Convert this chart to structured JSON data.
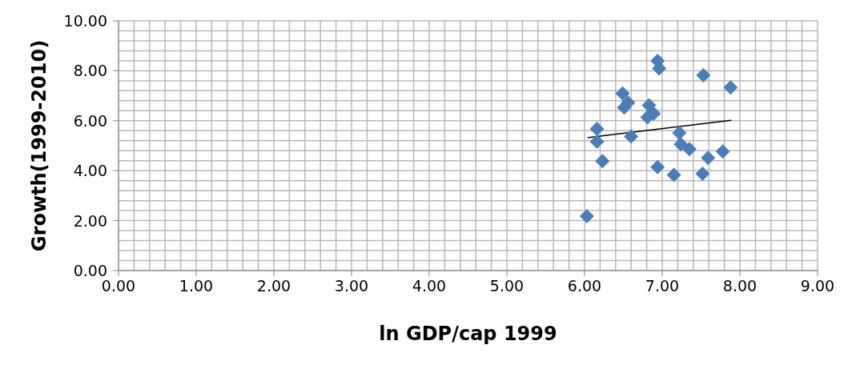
{
  "chart_data": {
    "type": "scatter",
    "xlabel": "ln GDP/cap 1999",
    "ylabel": "Growth(1999-2010)",
    "xlim": [
      0,
      9
    ],
    "ylim": [
      0,
      10
    ],
    "grid": true,
    "xticks": [
      {
        "value": 0,
        "label": "0.00"
      },
      {
        "value": 0.2,
        "label": null
      },
      {
        "value": 0.4,
        "label": null
      },
      {
        "value": 0.6,
        "label": null
      },
      {
        "value": 0.8,
        "label": null
      },
      {
        "value": 1,
        "label": "1.00"
      },
      {
        "value": 1.2,
        "label": null
      },
      {
        "value": 1.4,
        "label": null
      },
      {
        "value": 1.6,
        "label": null
      },
      {
        "value": 1.8,
        "label": null
      },
      {
        "value": 2,
        "label": "2.00"
      },
      {
        "value": 2.2,
        "label": null
      },
      {
        "value": 2.4,
        "label": null
      },
      {
        "value": 2.6,
        "label": null
      },
      {
        "value": 2.8,
        "label": null
      },
      {
        "value": 3,
        "label": "3.00"
      },
      {
        "value": 3.2,
        "label": null
      },
      {
        "value": 3.4,
        "label": null
      },
      {
        "value": 3.6,
        "label": null
      },
      {
        "value": 3.8,
        "label": null
      },
      {
        "value": 4,
        "label": "4.00"
      },
      {
        "value": 4.2,
        "label": null
      },
      {
        "value": 4.4,
        "label": null
      },
      {
        "value": 4.6,
        "label": null
      },
      {
        "value": 4.8,
        "label": null
      },
      {
        "value": 5,
        "label": "5.00"
      },
      {
        "value": 5.2,
        "label": null
      },
      {
        "value": 5.4,
        "label": null
      },
      {
        "value": 5.6,
        "label": null
      },
      {
        "value": 5.8,
        "label": null
      },
      {
        "value": 6,
        "label": "6.00"
      },
      {
        "value": 6.2,
        "label": null
      },
      {
        "value": 6.4,
        "label": null
      },
      {
        "value": 6.6,
        "label": null
      },
      {
        "value": 6.8,
        "label": null
      },
      {
        "value": 7,
        "label": "7.00"
      },
      {
        "value": 7.2,
        "label": null
      },
      {
        "value": 7.4,
        "label": null
      },
      {
        "value": 7.6,
        "label": null
      },
      {
        "value": 7.8,
        "label": null
      },
      {
        "value": 8,
        "label": "8.00"
      },
      {
        "value": 8.2,
        "label": null
      },
      {
        "value": 8.4,
        "label": null
      },
      {
        "value": 8.6,
        "label": null
      },
      {
        "value": 8.8,
        "label": null
      },
      {
        "value": 9,
        "label": "9.00"
      }
    ],
    "yticks": [
      {
        "value": 0,
        "label": "0.00"
      },
      {
        "value": 0.4,
        "label": null
      },
      {
        "value": 0.8,
        "label": null
      },
      {
        "value": 1.2,
        "label": null
      },
      {
        "value": 1.6,
        "label": null
      },
      {
        "value": 2,
        "label": "2.00"
      },
      {
        "value": 2.4,
        "label": null
      },
      {
        "value": 2.8,
        "label": null
      },
      {
        "value": 3.2,
        "label": null
      },
      {
        "value": 3.6,
        "label": null
      },
      {
        "value": 4,
        "label": "4.00"
      },
      {
        "value": 4.4,
        "label": null
      },
      {
        "value": 4.8,
        "label": null
      },
      {
        "value": 5.2,
        "label": null
      },
      {
        "value": 5.6,
        "label": null
      },
      {
        "value": 6,
        "label": "6.00"
      },
      {
        "value": 6.4,
        "label": null
      },
      {
        "value": 6.8,
        "label": null
      },
      {
        "value": 7.2,
        "label": null
      },
      {
        "value": 7.6,
        "label": null
      },
      {
        "value": 8,
        "label": "8.00"
      },
      {
        "value": 8.4,
        "label": null
      },
      {
        "value": 8.8,
        "label": null
      },
      {
        "value": 9.2,
        "label": null
      },
      {
        "value": 9.6,
        "label": null
      },
      {
        "value": 10,
        "label": "10.00"
      }
    ],
    "series": [
      {
        "color": "#4a7ebb",
        "marker": "diamond",
        "x": [
          6.94,
          6.96,
          7.53,
          7.88,
          6.49,
          6.56,
          6.51,
          6.83,
          6.89,
          6.81,
          6.16,
          6.16,
          6.6,
          6.23,
          7.22,
          7.24,
          7.35,
          7.59,
          7.78,
          6.94,
          7.15,
          7.52,
          6.03
        ],
        "values": [
          8.4,
          8.09,
          7.82,
          7.33,
          7.09,
          6.72,
          6.53,
          6.62,
          6.28,
          6.14,
          5.67,
          5.16,
          5.37,
          4.38,
          5.51,
          5.06,
          4.86,
          4.51,
          4.77,
          4.14,
          3.83,
          3.88,
          2.18
        ]
      },
      {
        "type": "line",
        "color": "#000000",
        "marker": "none",
        "x": [
          6.04,
          7.89
        ],
        "values": [
          5.32,
          6.02
        ]
      }
    ]
  }
}
